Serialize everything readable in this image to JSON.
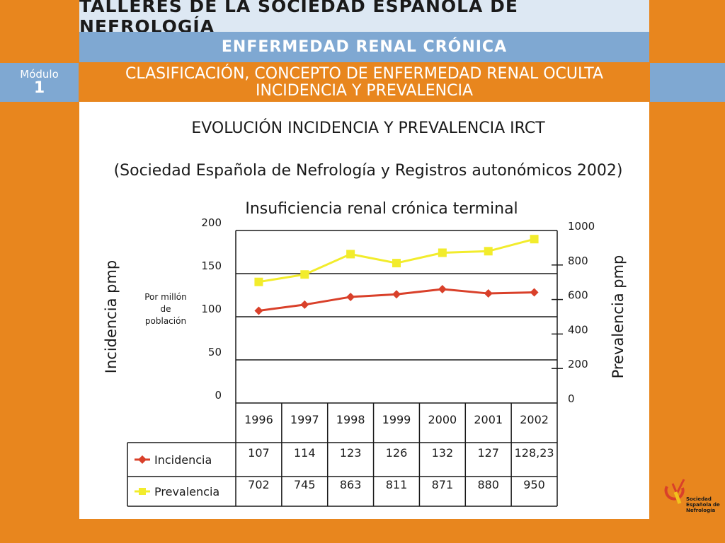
{
  "header": {
    "title": "TALLERES DE LA SOCIEDAD ESPAÑOLA DE NEFROLOGÍA",
    "subtitle": "ENFERMEDAD RENAL CRÓNICA",
    "module_label": "Módulo",
    "module_number": "1",
    "module_title_line1": "CLASIFICACIÓN, CONCEPTO DE ENFERMEDAD RENAL OCULTA",
    "module_title_line2": "INCIDENCIA Y PREVALENCIA"
  },
  "slide": {
    "heading": "EVOLUCIÓN INCIDENCIA Y PREVALENCIA IRCT",
    "source": "(Sociedad Española de Nefrología y Registros autonómicos 2002)"
  },
  "chart_data": {
    "type": "line",
    "title": "Insuficiencia renal crónica terminal",
    "ylabel_left": "Incidencia pmp",
    "ylabel_right": "Prevalencia pmp",
    "y_note": [
      "Por millón",
      "de",
      "población"
    ],
    "ylim_left": [
      0,
      200
    ],
    "ylim_right": [
      0,
      1000
    ],
    "yticks_left": [
      0,
      50,
      100,
      150,
      200
    ],
    "yticks_right": [
      0,
      200,
      400,
      600,
      800,
      1000
    ],
    "categories": [
      "1996",
      "1997",
      "1998",
      "1999",
      "2000",
      "2001",
      "2002"
    ],
    "grid": true,
    "series": [
      {
        "name": "Incidencia",
        "axis": "left",
        "color": "#d9402a",
        "marker": "diamond",
        "values": [
          107,
          114,
          123,
          126,
          132,
          127,
          128.23
        ],
        "labels": [
          "107",
          "114",
          "123",
          "126",
          "132",
          "127",
          "128,23"
        ]
      },
      {
        "name": "Prevalencia",
        "axis": "right",
        "color": "#f2ec2c",
        "marker": "square",
        "values": [
          702,
          745,
          863,
          811,
          871,
          880,
          950
        ],
        "labels": [
          "702",
          "745",
          "863",
          "811",
          "871",
          "880",
          "950"
        ]
      }
    ]
  },
  "logo": {
    "line1": "Sociedad",
    "line2": "Española de",
    "line3": "Nefrología",
    "colors": [
      "#d9402a",
      "#f2c21c"
    ]
  }
}
